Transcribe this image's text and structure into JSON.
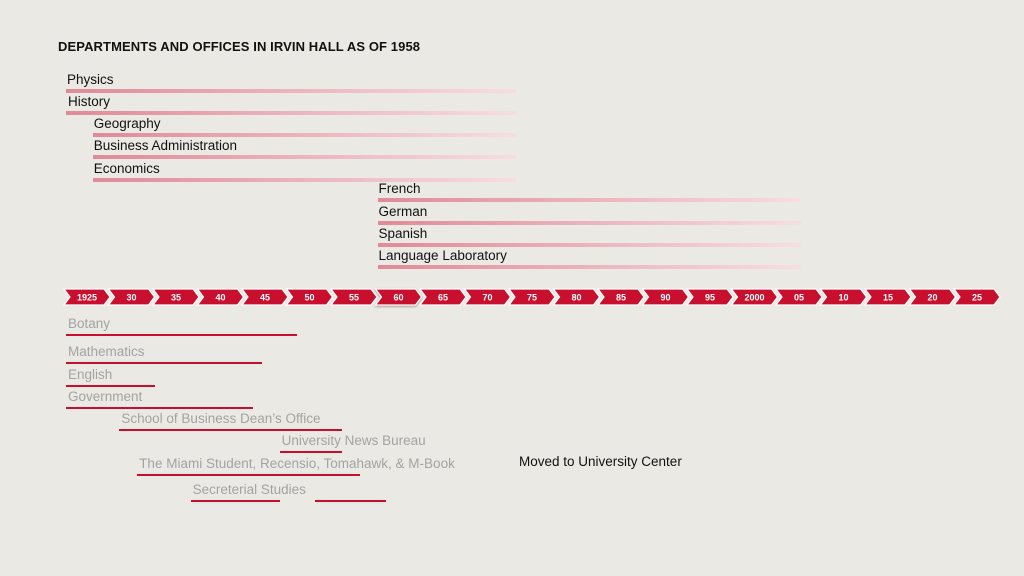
{
  "title": "DEPARTMENTS AND OFFICES IN IRVIN HALL AS OF 1958",
  "axis": {
    "ticks": [
      "1925",
      "30",
      "35",
      "40",
      "45",
      "50",
      "55",
      "60",
      "65",
      "70",
      "75",
      "80",
      "85",
      "90",
      "95",
      "2000",
      "05",
      "10",
      "15",
      "20",
      "25"
    ],
    "tick_years": [
      1925,
      1930,
      1935,
      1940,
      1945,
      1950,
      1955,
      1960,
      1965,
      1970,
      1975,
      1980,
      1985,
      1990,
      1995,
      2000,
      2005,
      2010,
      2015,
      2020,
      2025
    ],
    "highlight": "60"
  },
  "in_hall": [
    {
      "label": "Physics",
      "start": 1925,
      "end": 1975
    },
    {
      "label": "History",
      "start": 1925,
      "end": 1975
    },
    {
      "label": "Geography",
      "start": 1928,
      "end": 1975
    },
    {
      "label": "Business Administration",
      "start": 1928,
      "end": 1975
    },
    {
      "label": "Economics",
      "start": 1928,
      "end": 1975
    },
    {
      "label": "French",
      "start": 1960,
      "end": 2007
    },
    {
      "label": "German",
      "start": 1960,
      "end": 2007
    },
    {
      "label": "Spanish",
      "start": 1960,
      "end": 2007
    },
    {
      "label": "Language Laboratory",
      "start": 1960,
      "end": 2007
    }
  ],
  "moved_out": [
    {
      "label": "Botany",
      "start": 1925,
      "end": 1951
    },
    {
      "label": "Mathematics",
      "start": 1925,
      "end": 1947
    },
    {
      "label": "English",
      "start": 1925,
      "end": 1935
    },
    {
      "label": "Government",
      "start": 1925,
      "end": 1946
    },
    {
      "label": "School of Business Dean’s Office",
      "start": 1931,
      "end": 1956
    },
    {
      "label": "University News Bureau",
      "start": 1949,
      "end": 1956
    },
    {
      "label": "The Miami Student, Recensio, Tomahawk, & M-Book",
      "start": 1933,
      "end": 1958
    },
    {
      "label": "Secreterial Studies",
      "start": 1939,
      "end": 1949
    },
    {
      "label": "",
      "start": 1953,
      "end": 1961
    }
  ],
  "note": "Moved to University Center",
  "colors": {
    "background": "#ebe9e3",
    "arrow": "#c8102e",
    "in_bar_start": "#e08a98",
    "in_bar_end": "#f7dde1",
    "out_bar": "#c8102e",
    "out_label": "#a3a3a3"
  }
}
